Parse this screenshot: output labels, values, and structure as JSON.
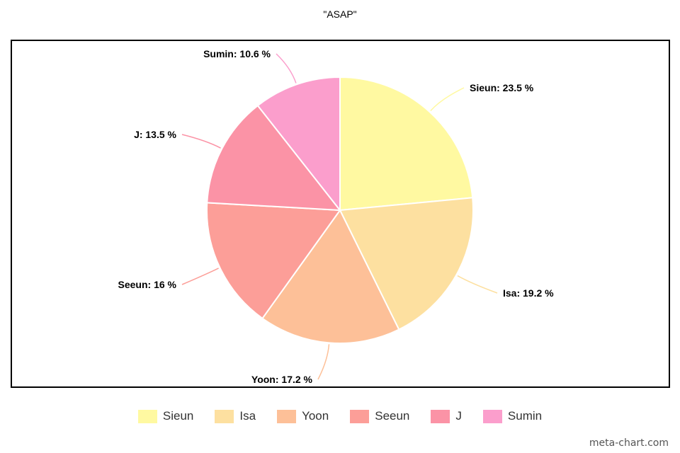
{
  "chart_data": {
    "type": "pie",
    "title": "\"ASAP\"",
    "slices": [
      {
        "name": "Sieun",
        "value": 23.5,
        "label": "Sieun: 23.5 %",
        "color": "#fff9a1"
      },
      {
        "name": "Isa",
        "value": 19.2,
        "label": "Isa: 19.2 %",
        "color": "#fde0a0"
      },
      {
        "name": "Yoon",
        "value": 17.2,
        "label": "Yoon: 17.2 %",
        "color": "#fdc098"
      },
      {
        "name": "Seeun",
        "value": 16,
        "label": "Seeun: 16 %",
        "color": "#fc9e98"
      },
      {
        "name": "J",
        "value": 13.5,
        "label": "J: 13.5 %",
        "color": "#fb93a6"
      },
      {
        "name": "Sumin",
        "value": 10.6,
        "label": "Sumin: 10.6 %",
        "color": "#fb9ecc"
      }
    ],
    "legend_position": "bottom"
  },
  "watermark": "meta-chart.com"
}
